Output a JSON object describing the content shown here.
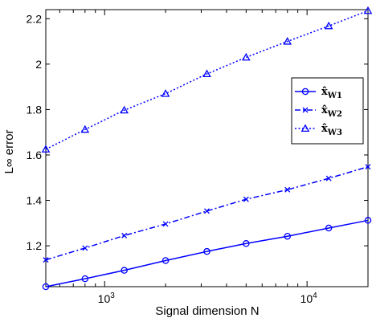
{
  "chart_data": {
    "type": "line",
    "xscale": "log",
    "x": [
      512,
      800,
      1250,
      2000,
      3200,
      5000,
      8000,
      12800,
      20000
    ],
    "xlim": [
      512,
      20000
    ],
    "ylim": [
      1.02,
      2.24
    ],
    "xlabel": "Signal dimension N",
    "ylabel": "L∞ error",
    "x_ticks": [
      1000,
      10000
    ],
    "x_tick_labels": [
      {
        "base": "10",
        "exp": "3"
      },
      {
        "base": "10",
        "exp": "4"
      }
    ],
    "y_ticks": [
      1.2,
      1.4,
      1.6,
      1.8,
      2.0,
      2.2
    ],
    "y_tick_labels": [
      "1.2",
      "1.4",
      "1.6",
      "1.8",
      "2",
      "2.2"
    ],
    "grid": false,
    "legend_position": "right",
    "color": "#0000ff",
    "series": [
      {
        "name": "x̂W1",
        "base": "x̂",
        "sub": "W1",
        "linestyle": "solid",
        "marker": "circle",
        "values": [
          1.02,
          1.055,
          1.092,
          1.135,
          1.175,
          1.21,
          1.242,
          1.278,
          1.312
        ]
      },
      {
        "name": "x̂W2",
        "base": "x̂",
        "sub": "W2",
        "linestyle": "dashdot",
        "marker": "x",
        "values": [
          1.138,
          1.19,
          1.245,
          1.296,
          1.353,
          1.405,
          1.447,
          1.497,
          1.548
        ]
      },
      {
        "name": "x̂W3",
        "base": "x̂",
        "sub": "W3",
        "linestyle": "dotted",
        "marker": "triangle",
        "values": [
          1.625,
          1.712,
          1.797,
          1.87,
          1.957,
          2.03,
          2.1,
          2.168,
          2.235
        ]
      }
    ]
  }
}
